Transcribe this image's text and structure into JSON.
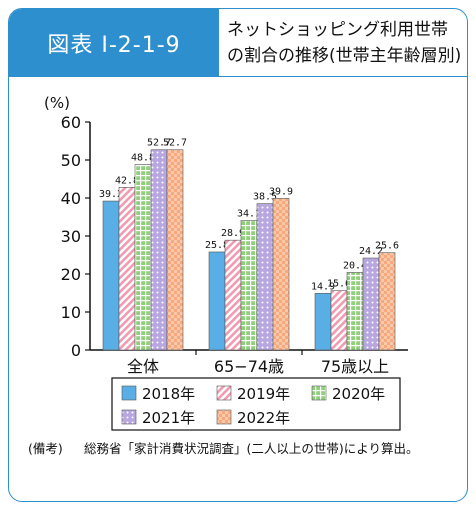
{
  "header": {
    "figure_label": "図表 I-2-1-9",
    "title_line1": "ネットショッピング利用世帯",
    "title_line2": "の割合の推移(世帯主年齢層別)"
  },
  "chart_data": {
    "type": "bar",
    "unit_label": "(%)",
    "ylim": [
      0,
      60
    ],
    "yticks": [
      0,
      10,
      20,
      30,
      40,
      50,
      60
    ],
    "categories": [
      "全体",
      "65−74歳",
      "75歳以上"
    ],
    "series": [
      {
        "name": "2018年",
        "values": [
          39.2,
          25.8,
          14.9
        ],
        "color": "#5aaee6",
        "pattern": "solid"
      },
      {
        "name": "2019年",
        "values": [
          42.8,
          28.9,
          15.6
        ],
        "color": "#f29bb0",
        "pattern": "diagonal"
      },
      {
        "name": "2020年",
        "values": [
          48.8,
          34.1,
          20.4
        ],
        "color": "#8fd07a",
        "pattern": "grid"
      },
      {
        "name": "2021年",
        "values": [
          52.7,
          38.5,
          24.2
        ],
        "color": "#b7a6e0",
        "pattern": "dots"
      },
      {
        "name": "2022年",
        "values": [
          52.7,
          39.9,
          25.6
        ],
        "color": "#f6a97f",
        "pattern": "check"
      }
    ],
    "legend_position": "bottom"
  },
  "note": {
    "label": "(備考)",
    "text": "総務省「家計消費状況調査」(二人以上の世帯)により算出。"
  }
}
